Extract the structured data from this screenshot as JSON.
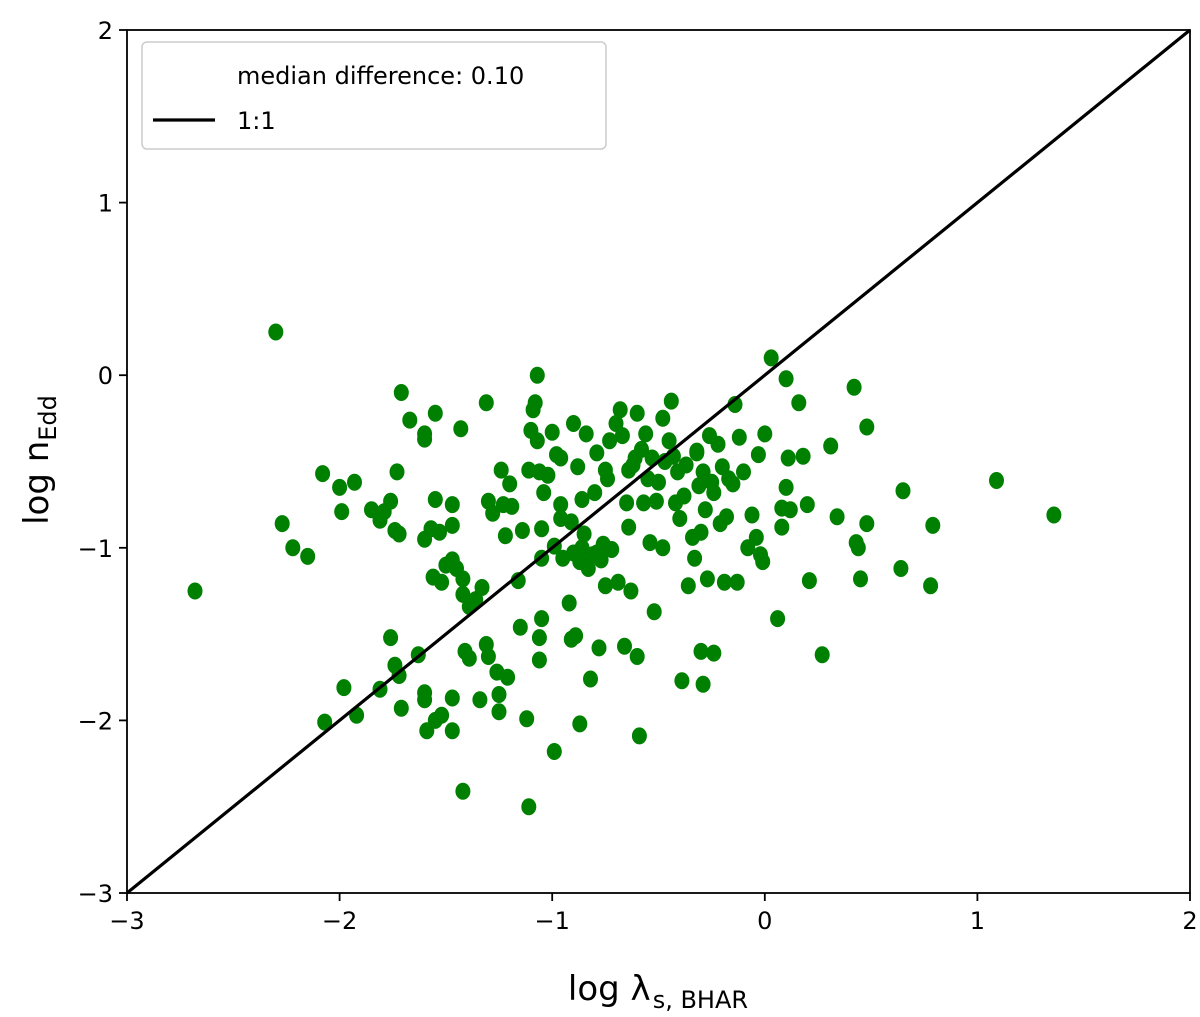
{
  "chart_data": {
    "type": "scatter",
    "title": "",
    "xlabel": {
      "main": "log λ",
      "sub": "s, BHAR"
    },
    "ylabel": {
      "main": "log n",
      "sub": "Edd"
    },
    "xlim": [
      -3,
      2
    ],
    "ylim": [
      -3,
      2
    ],
    "x_ticks": [
      -3,
      -2,
      -1,
      0,
      1,
      2
    ],
    "y_ticks": [
      -3,
      -2,
      -1,
      0,
      1,
      2
    ],
    "x_tick_labels": [
      "−3",
      "−2",
      "−1",
      "0",
      "1",
      "2"
    ],
    "y_tick_labels": [
      "−3",
      "−2",
      "−1",
      "0",
      "1",
      "2"
    ],
    "grid": false,
    "legend": {
      "position": "top-left",
      "entries": [
        {
          "label": "median difference: 0.10",
          "marker": "none"
        },
        {
          "label": "1:1",
          "marker": "line"
        }
      ]
    },
    "series": [
      {
        "name": "",
        "marker_color": "#008000",
        "points": [
          [
            -2.3,
            0.25
          ],
          [
            -2.68,
            -1.25
          ],
          [
            -2.27,
            -0.86
          ],
          [
            -2.22,
            -1.0
          ],
          [
            -2.15,
            -1.05
          ],
          [
            -2.08,
            -0.57
          ],
          [
            -2.0,
            -0.65
          ],
          [
            -1.93,
            -0.62
          ],
          [
            -1.85,
            -0.78
          ],
          [
            -1.81,
            -0.84
          ],
          [
            -1.79,
            -0.79
          ],
          [
            -1.76,
            -0.73
          ],
          [
            -1.74,
            -0.9
          ],
          [
            -1.72,
            -0.92
          ],
          [
            -1.73,
            -0.56
          ],
          [
            -1.71,
            -0.1
          ],
          [
            -1.67,
            -0.26
          ],
          [
            -1.6,
            -0.34
          ],
          [
            -1.6,
            -0.37
          ],
          [
            -1.6,
            -0.95
          ],
          [
            -1.57,
            -0.89
          ],
          [
            -1.55,
            -0.22
          ],
          [
            -1.55,
            -0.72
          ],
          [
            -1.53,
            -0.91
          ],
          [
            -1.5,
            -1.1
          ],
          [
            -1.47,
            -0.75
          ],
          [
            -1.47,
            -0.87
          ],
          [
            -1.47,
            -1.07
          ],
          [
            -1.45,
            -1.12
          ],
          [
            -1.43,
            -0.31
          ],
          [
            -1.56,
            -1.17
          ],
          [
            -1.52,
            -1.2
          ],
          [
            -1.42,
            -1.18
          ],
          [
            -1.42,
            -1.27
          ],
          [
            -1.39,
            -1.34
          ],
          [
            -1.36,
            -1.3
          ],
          [
            -1.33,
            -1.23
          ],
          [
            -1.31,
            -0.16
          ],
          [
            -1.3,
            -0.73
          ],
          [
            -1.28,
            -0.8
          ],
          [
            -1.23,
            -0.75
          ],
          [
            -1.22,
            -0.93
          ],
          [
            -1.19,
            -0.76
          ],
          [
            -1.2,
            -0.63
          ],
          [
            -1.16,
            -1.19
          ],
          [
            -1.14,
            -0.9
          ],
          [
            -1.11,
            -0.55
          ],
          [
            -1.1,
            -0.32
          ],
          [
            -1.09,
            -0.2
          ],
          [
            -1.08,
            -0.16
          ],
          [
            -1.07,
            -0.38
          ],
          [
            -1.07,
            0.0
          ],
          [
            -1.06,
            -0.56
          ],
          [
            -1.05,
            -0.89
          ],
          [
            -1.05,
            -1.06
          ],
          [
            -1.05,
            -1.41
          ],
          [
            -1.06,
            -1.52
          ],
          [
            -1.06,
            -1.65
          ],
          [
            -1.04,
            -0.68
          ],
          [
            -1.02,
            -0.58
          ],
          [
            -1.0,
            -0.33
          ],
          [
            -0.99,
            -0.99
          ],
          [
            -0.98,
            -0.46
          ],
          [
            -0.96,
            -0.75
          ],
          [
            -0.96,
            -0.83
          ],
          [
            -0.92,
            -1.32
          ],
          [
            -0.91,
            -0.85
          ],
          [
            -0.9,
            -0.28
          ],
          [
            -0.88,
            -0.53
          ],
          [
            -0.87,
            -1.08
          ],
          [
            -0.86,
            -0.72
          ],
          [
            -0.85,
            -0.92
          ],
          [
            -0.84,
            -0.34
          ],
          [
            -0.83,
            -1.12
          ],
          [
            -0.82,
            -1.76
          ],
          [
            -0.81,
            -1.04
          ],
          [
            -0.8,
            -0.68
          ],
          [
            -0.79,
            -0.45
          ],
          [
            -0.77,
            -1.07
          ],
          [
            -0.76,
            -0.98
          ],
          [
            -0.75,
            -0.55
          ],
          [
            -0.74,
            -0.6
          ],
          [
            -0.73,
            -0.38
          ],
          [
            -0.72,
            -1.01
          ],
          [
            -0.7,
            -0.28
          ],
          [
            -0.69,
            -1.2
          ],
          [
            -0.68,
            -0.2
          ],
          [
            -0.67,
            -0.35
          ],
          [
            -0.65,
            -0.74
          ],
          [
            -0.64,
            -0.55
          ],
          [
            -0.63,
            -1.25
          ],
          [
            -0.62,
            -0.52
          ],
          [
            -0.6,
            -0.22
          ],
          [
            -0.58,
            -0.43
          ],
          [
            -0.56,
            -0.34
          ],
          [
            -0.55,
            -0.6
          ],
          [
            -0.54,
            -0.97
          ],
          [
            -0.53,
            -0.48
          ],
          [
            -0.52,
            -1.37
          ],
          [
            -0.51,
            -0.73
          ],
          [
            -0.5,
            -0.62
          ],
          [
            -0.48,
            -0.25
          ],
          [
            -0.47,
            -0.5
          ],
          [
            -0.45,
            -0.38
          ],
          [
            -0.44,
            -0.15
          ],
          [
            -0.43,
            -0.47
          ],
          [
            -0.42,
            -0.74
          ],
          [
            -0.41,
            -0.56
          ],
          [
            -0.4,
            -0.83
          ],
          [
            -0.38,
            -0.7
          ],
          [
            -0.37,
            -0.52
          ],
          [
            -0.36,
            -1.22
          ],
          [
            -0.34,
            -0.94
          ],
          [
            -0.33,
            -1.06
          ],
          [
            -0.32,
            -0.44
          ],
          [
            -0.31,
            -0.64
          ],
          [
            -0.3,
            -0.91
          ],
          [
            -0.29,
            -0.56
          ],
          [
            -0.28,
            -0.78
          ],
          [
            -0.27,
            -1.18
          ],
          [
            -0.26,
            -0.35
          ],
          [
            -0.25,
            -0.62
          ],
          [
            -0.24,
            -0.68
          ],
          [
            -0.22,
            -0.4
          ],
          [
            -0.21,
            -0.86
          ],
          [
            -0.2,
            -0.53
          ],
          [
            -0.19,
            -1.2
          ],
          [
            -0.18,
            -0.82
          ],
          [
            -0.17,
            -0.6
          ],
          [
            -0.15,
            -0.63
          ],
          [
            -0.14,
            -0.17
          ],
          [
            -0.13,
            -1.2
          ],
          [
            -0.12,
            -0.36
          ],
          [
            -0.1,
            -0.56
          ],
          [
            -0.08,
            -1.0
          ],
          [
            -0.06,
            -0.81
          ],
          [
            -0.04,
            -0.94
          ],
          [
            -0.03,
            -0.46
          ],
          [
            -0.02,
            -1.04
          ],
          [
            -0.01,
            -1.08
          ],
          [
            0.0,
            -0.34
          ],
          [
            0.03,
            0.1
          ],
          [
            0.06,
            -1.41
          ],
          [
            0.08,
            -0.77
          ],
          [
            0.08,
            -0.88
          ],
          [
            0.1,
            -0.02
          ],
          [
            0.1,
            -0.65
          ],
          [
            0.11,
            -0.48
          ],
          [
            0.12,
            -0.78
          ],
          [
            0.16,
            -0.16
          ],
          [
            0.18,
            -0.47
          ],
          [
            0.2,
            -0.75
          ],
          [
            0.21,
            -1.19
          ],
          [
            0.27,
            -1.62
          ],
          [
            0.31,
            -0.41
          ],
          [
            0.34,
            -0.82
          ],
          [
            0.42,
            -0.07
          ],
          [
            0.43,
            -0.97
          ],
          [
            0.44,
            -1.0
          ],
          [
            0.45,
            -1.18
          ],
          [
            0.48,
            -0.3
          ],
          [
            0.48,
            -0.86
          ],
          [
            0.64,
            -1.12
          ],
          [
            0.65,
            -0.67
          ],
          [
            0.78,
            -1.22
          ],
          [
            0.79,
            -0.87
          ],
          [
            1.09,
            -0.61
          ],
          [
            1.36,
            -0.81
          ],
          [
            -1.81,
            -1.82
          ],
          [
            -1.76,
            -1.52
          ],
          [
            -1.74,
            -1.68
          ],
          [
            -1.72,
            -1.74
          ],
          [
            -1.71,
            -1.93
          ],
          [
            -1.63,
            -1.62
          ],
          [
            -1.6,
            -1.84
          ],
          [
            -1.6,
            -1.88
          ],
          [
            -1.59,
            -2.06
          ],
          [
            -1.55,
            -2.0
          ],
          [
            -1.52,
            -1.97
          ],
          [
            -1.47,
            -1.87
          ],
          [
            -1.47,
            -2.06
          ],
          [
            -1.42,
            -2.41
          ],
          [
            -1.41,
            -1.6
          ],
          [
            -1.39,
            -1.64
          ],
          [
            -1.34,
            -1.88
          ],
          [
            -1.31,
            -1.56
          ],
          [
            -1.3,
            -1.63
          ],
          [
            -1.26,
            -1.72
          ],
          [
            -1.25,
            -1.85
          ],
          [
            -1.25,
            -1.95
          ],
          [
            -1.21,
            -1.75
          ],
          [
            -1.15,
            -1.46
          ],
          [
            -1.12,
            -1.99
          ],
          [
            -1.11,
            -2.5
          ],
          [
            -0.99,
            -2.18
          ],
          [
            -0.91,
            -1.53
          ],
          [
            -0.89,
            -1.51
          ],
          [
            -0.87,
            -2.02
          ],
          [
            -0.78,
            -1.58
          ],
          [
            -0.66,
            -1.57
          ],
          [
            -0.6,
            -1.63
          ],
          [
            -0.59,
            -2.09
          ],
          [
            -0.39,
            -1.77
          ],
          [
            -0.29,
            -1.79
          ],
          [
            -0.3,
            -1.6
          ],
          [
            -0.24,
            -1.61
          ],
          [
            -2.07,
            -2.01
          ],
          [
            -1.92,
            -1.97
          ],
          [
            -1.99,
            -0.79
          ],
          [
            -1.98,
            -1.81
          ],
          [
            -0.95,
            -1.06
          ],
          [
            -0.9,
            -1.03
          ],
          [
            -0.86,
            -1.0
          ],
          [
            -0.75,
            -1.22
          ],
          [
            -1.24,
            -0.55
          ],
          [
            -0.96,
            -0.48
          ],
          [
            -0.61,
            -0.48
          ],
          [
            -0.48,
            -1.0
          ],
          [
            -0.32,
            -0.45
          ],
          [
            -0.57,
            -0.74
          ],
          [
            -0.64,
            -0.88
          ],
          [
            -0.79,
            -1.03
          ]
        ]
      }
    ],
    "reference_line": {
      "name": "1:1",
      "from": [
        -3,
        -3
      ],
      "to": [
        2,
        2
      ],
      "color": "#000000"
    }
  }
}
